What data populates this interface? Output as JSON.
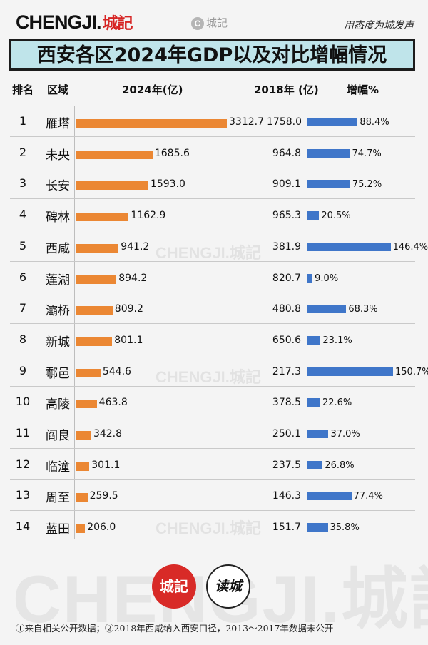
{
  "header": {
    "brand_en": "CHENGJI.",
    "brand_cn": "城記",
    "center_logo_letter": "C",
    "center_logo_text": "城記",
    "slogan": "用态度为城发声",
    "title": "西安各区2024年GDP以及对比增幅情况"
  },
  "columns": {
    "rank": "排名",
    "district": "区域",
    "gdp_2024": "2024年(亿)",
    "gdp_2018": "2018年 (亿)",
    "growth": "增幅%"
  },
  "watermark": "CHENGJI.城記",
  "logos": {
    "red": "城記",
    "ring": "读城"
  },
  "footnote": "①来自相关公开数据；②2018年西咸纳入西安口径，2013～2017年数据未公开",
  "colors": {
    "bar_2024": "#eb8733",
    "bar_growth": "#3f76c9",
    "title_bg": "#bfe4ea",
    "brand_red": "#d62423"
  },
  "chart_data": {
    "type": "table",
    "categories": [
      "雁塔",
      "未央",
      "长安",
      "碑林",
      "西咸",
      "莲湖",
      "灞桥",
      "新城",
      "鄠邑",
      "高陵",
      "阎良",
      "临潼",
      "周至",
      "蓝田"
    ],
    "ranks": [
      "1",
      "2",
      "3",
      "4",
      "5",
      "6",
      "7",
      "8",
      "9",
      "10",
      "11",
      "12",
      "13",
      "14"
    ],
    "series": [
      {
        "name": "2024年(亿)",
        "values": [
          3312.7,
          1685.6,
          1593.0,
          1162.9,
          941.2,
          894.2,
          809.2,
          801.1,
          544.6,
          463.8,
          342.8,
          301.1,
          259.5,
          206.0
        ]
      },
      {
        "name": "2018年 (亿)",
        "values": [
          1758.0,
          964.8,
          909.1,
          965.3,
          381.9,
          820.7,
          480.8,
          650.6,
          217.3,
          378.5,
          250.1,
          237.5,
          146.3,
          151.7
        ]
      },
      {
        "name": "增幅%",
        "values": [
          88.4,
          74.7,
          75.2,
          20.5,
          146.4,
          9.0,
          68.3,
          23.1,
          150.7,
          22.6,
          37.0,
          26.8,
          77.4,
          35.8
        ]
      }
    ]
  }
}
